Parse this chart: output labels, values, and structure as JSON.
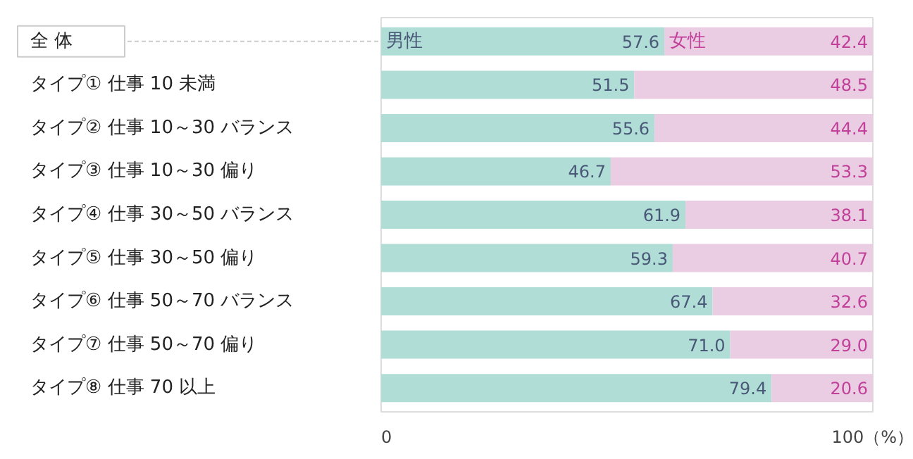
{
  "chart_data": {
    "type": "bar",
    "orientation": "horizontal",
    "stacked": true,
    "categories": [
      "全 体",
      "タイプ① 仕事 10 未満",
      "タイプ② 仕事 10～30 バランス",
      "タイプ③ 仕事 10～30 偏り",
      "タイプ④ 仕事 30～50 バランス",
      "タイプ⑤ 仕事 30～50 偏り",
      "タイプ⑥ 仕事 50～70 バランス",
      "タイプ⑦ 仕事 50～70 偏り",
      "タイプ⑧ 仕事 70 以上"
    ],
    "series": [
      {
        "name": "男性",
        "color": "#b0ddd6",
        "values": [
          57.6,
          51.5,
          55.6,
          46.7,
          61.9,
          59.3,
          67.4,
          71.0,
          79.4
        ],
        "value_labels": [
          "57.6",
          "51.5",
          "55.6",
          "46.7",
          "61.9",
          "59.3",
          "67.4",
          "71.0",
          "79.4"
        ]
      },
      {
        "name": "女性",
        "color": "#ebcde3",
        "values": [
          42.4,
          48.5,
          44.4,
          53.3,
          38.1,
          40.7,
          32.6,
          29.0,
          20.6
        ],
        "value_labels": [
          "42.4",
          "48.5",
          "44.4",
          "53.3",
          "38.1",
          "40.7",
          "32.6",
          "29.0",
          "20.6"
        ]
      }
    ],
    "xlim": [
      0,
      100
    ],
    "xticks": [
      0,
      {
        "value": 100,
        "label": "100（%）"
      }
    ],
    "grid": false,
    "legend": false
  }
}
